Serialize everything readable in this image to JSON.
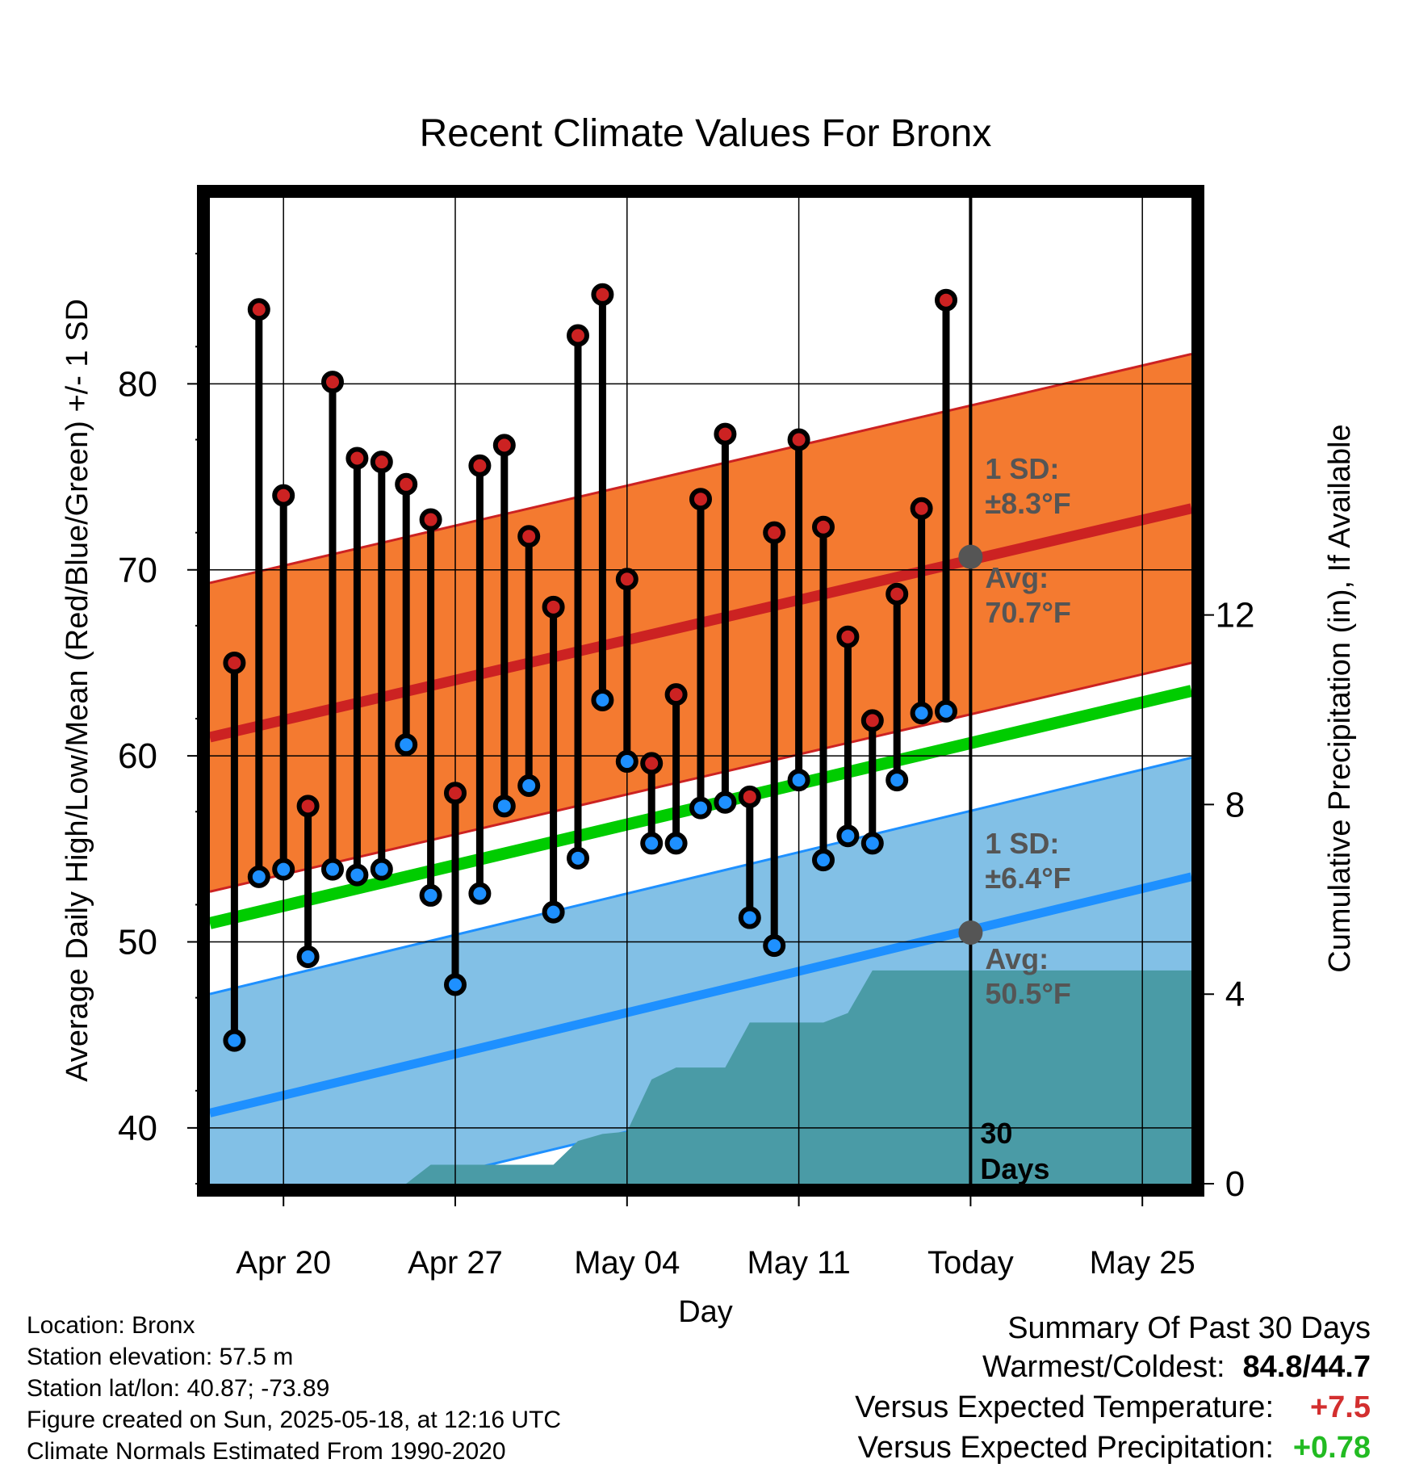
{
  "chart_data": {
    "type": "line",
    "title": "Recent Climate Values For Bronx",
    "xlabel": "Day",
    "ylabel": "Average Daily High/Low/Mean (Red/Blue/Green) +/- 1 SD",
    "y2label": "Cumulative Precipitation (in), If Available",
    "x_tick_labels": [
      "Apr 20",
      "Apr 27",
      "May 04",
      "May 11",
      "Today",
      "May 25"
    ],
    "x_tick_dates": [
      "2025-04-20",
      "2025-04-27",
      "2025-05-04",
      "2025-05-11",
      "2025-05-18",
      "2025-05-25"
    ],
    "xlim": [
      "2025-04-17",
      "2025-05-27"
    ],
    "ylim": [
      37,
      90
    ],
    "y_ticks": [
      40,
      50,
      60,
      70,
      80
    ],
    "y2lim": [
      0,
      20.8
    ],
    "y2_ticks": [
      0,
      4,
      8,
      12
    ],
    "grid": true,
    "dates": [
      "2025-04-18",
      "2025-04-19",
      "2025-04-20",
      "2025-04-21",
      "2025-04-22",
      "2025-04-23",
      "2025-04-24",
      "2025-04-25",
      "2025-04-26",
      "2025-04-27",
      "2025-04-28",
      "2025-04-29",
      "2025-04-30",
      "2025-05-01",
      "2025-05-02",
      "2025-05-03",
      "2025-05-04",
      "2025-05-05",
      "2025-05-06",
      "2025-05-07",
      "2025-05-08",
      "2025-05-09",
      "2025-05-10",
      "2025-05-11",
      "2025-05-12",
      "2025-05-13",
      "2025-05-14",
      "2025-05-15",
      "2025-05-16",
      "2025-05-17"
    ],
    "series": [
      {
        "name": "High",
        "color": "#cc2222",
        "values": [
          65.0,
          84.0,
          74.0,
          57.3,
          80.1,
          76.0,
          75.8,
          74.6,
          72.7,
          58.0,
          75.6,
          76.7,
          71.8,
          68.0,
          82.6,
          84.8,
          69.5,
          59.6,
          63.3,
          73.8,
          77.3,
          57.8,
          72.0,
          77.0,
          72.3,
          66.4,
          61.9,
          68.7,
          73.3,
          84.5
        ]
      },
      {
        "name": "Low",
        "color": "#1e90ff",
        "values": [
          44.7,
          53.5,
          53.9,
          49.2,
          53.9,
          53.6,
          53.9,
          60.6,
          52.5,
          47.7,
          52.6,
          57.3,
          58.4,
          51.6,
          54.5,
          63.0,
          59.7,
          55.3,
          55.3,
          57.2,
          57.5,
          51.3,
          49.8,
          58.7,
          54.4,
          55.7,
          55.3,
          58.7,
          62.3,
          62.4
        ]
      }
    ],
    "normals": {
      "high_avg": [
        61.0,
        73.3
      ],
      "high_sd": 8.3,
      "low_avg": [
        40.8,
        53.5
      ],
      "low_sd": 6.4,
      "mean_avg": [
        51.0,
        63.5
      ],
      "normal_range_dates": [
        "2025-04-17",
        "2025-05-27"
      ]
    },
    "precipitation": {
      "dates": [
        "2025-04-25",
        "2025-04-26",
        "2025-05-01",
        "2025-05-02",
        "2025-05-03",
        "2025-05-04",
        "2025-05-05",
        "2025-05-06",
        "2025-05-08",
        "2025-05-09",
        "2025-05-10",
        "2025-05-11",
        "2025-05-12",
        "2025-05-13",
        "2025-05-14",
        "2025-05-27"
      ],
      "values": [
        0.0,
        0.4,
        0.4,
        0.9,
        1.05,
        1.1,
        2.2,
        2.45,
        2.45,
        3.4,
        3.4,
        3.4,
        3.4,
        3.6,
        4.5,
        4.5
      ]
    },
    "today_line": "2025-05-18",
    "markers": [
      {
        "label": "Avg high",
        "date": "2025-05-18",
        "value": 70.7
      },
      {
        "label": "Avg low",
        "date": "2025-05-18",
        "value": 50.5
      }
    ],
    "annotations": {
      "high_sd_title": "1 SD:",
      "high_sd_value": "±8.3°F",
      "high_avg_title": "Avg:",
      "high_avg_value": "70.7°F",
      "low_sd_title": "1 SD:",
      "low_sd_value": "±6.4°F",
      "low_avg_title": "Avg:",
      "low_avg_value": "50.5°F",
      "days_number": "30",
      "days_word": "Days"
    },
    "colors": {
      "high_band": "#f47a30",
      "high_line": "#cc2222",
      "low_band": "#82c0e6",
      "low_line": "#1e90ff",
      "mean_line": "#00cc00",
      "precip": "#4a9ba6",
      "annotation": "#555555"
    }
  },
  "info": {
    "location": "Location: Bronx",
    "elevation": "Station elevation: 57.5 m",
    "latlon": "Station lat/lon: 40.87; -73.89",
    "created": "Figure created on Sun, 2025-05-18, at 12:16 UTC",
    "normals": "Climate Normals Estimated From 1990-2020"
  },
  "summary": {
    "title": "Summary Of Past 30 Days",
    "warm_label": "Warmest/Coldest:",
    "warm_value": "84.8/44.7",
    "temp_label": "Versus Expected Temperature:",
    "temp_value": "+7.5",
    "precip_label": "Versus Expected Precipitation:",
    "precip_value": "+0.78"
  }
}
